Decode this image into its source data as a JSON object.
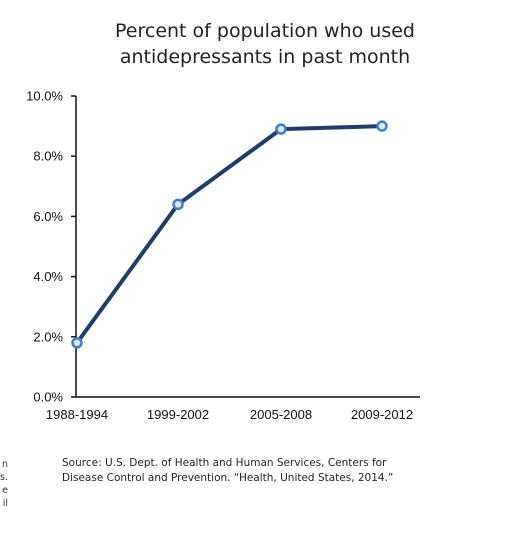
{
  "chart_data": {
    "type": "line",
    "title_lines": [
      "Percent of population who used",
      "antidepressants in past month"
    ],
    "categories": [
      "1988-1994",
      "1999-2002",
      "2005-2008",
      "2009-2012"
    ],
    "series": [
      {
        "values": [
          1.8,
          6.4,
          8.9,
          9.0
        ]
      }
    ],
    "ylim": [
      0,
      10
    ],
    "yticks": [
      "0.0%",
      "2.0%",
      "4.0%",
      "6.0%",
      "8.0%",
      "10.0%"
    ],
    "grid": false,
    "line_color": "#1f3d66",
    "marker_color": "#3f7ec6",
    "source_lines": [
      "Source: U.S. Dept. of Health and Human Services, Centers for",
      "Disease Control and Prevention. “Health, United States, 2014.”"
    ]
  },
  "edge_fragment": [
    "n",
    "s.",
    "e",
    "il"
  ]
}
